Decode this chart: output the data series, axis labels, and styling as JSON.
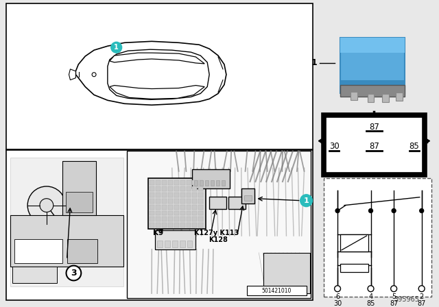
{
  "bg_color": "#e8e8e8",
  "white": "#ffffff",
  "black": "#000000",
  "blue_relay": "#5aabdd",
  "teal_circle": "#2abcbc",
  "part_number": "395965",
  "stamp": "501421010",
  "schematic_pins_top": [
    "6",
    "4",
    "5",
    "2"
  ],
  "schematic_pins_bot": [
    "30",
    "85",
    "87",
    "87"
  ],
  "relay_sym_top": "87",
  "relay_sym_mid_left": "30",
  "relay_sym_mid_center": "87",
  "relay_sym_mid_right": "85"
}
